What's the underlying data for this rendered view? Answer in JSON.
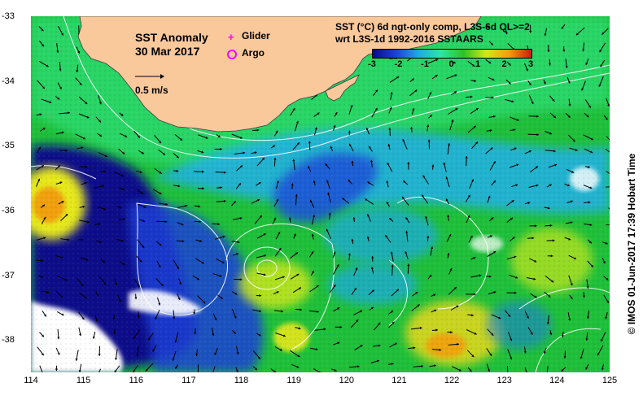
{
  "map": {
    "title": "SST Anomaly",
    "date": "30 Mar 2017",
    "scale_label": "0.5 m/s",
    "legend": {
      "glider": {
        "label": "Glider",
        "color": "#ff00ff",
        "symbol": "plus-marker"
      },
      "argo": {
        "label": "Argo",
        "color": "#ff00ff",
        "symbol": "circle-marker"
      }
    },
    "product_line1": "SST (°C) 6d ngt-only comp, L3S-6d QL>=2",
    "product_line2": "wrt L3S-1d 1992-2016 SSTAARS",
    "credit": "© IMOS 01-Jun-2017 17:39 Hobart Time",
    "colorbar": {
      "ticks": [
        "-3",
        "-2",
        "-1",
        "0",
        "1",
        "2",
        "3"
      ],
      "range": [
        -3,
        3
      ],
      "colors": [
        "#0a0a8c",
        "#1a3fd6",
        "#1fa8e6",
        "#2ee6a0",
        "#30c02a",
        "#d6e61a",
        "#f0a010",
        "#c81a10"
      ]
    },
    "x_ticks": [
      "114",
      "115",
      "116",
      "117",
      "118",
      "119",
      "120",
      "121",
      "122",
      "123",
      "124",
      "125"
    ],
    "y_ticks": [
      "-33",
      "-34",
      "-35",
      "-36",
      "-37",
      "-38"
    ],
    "lon_range": [
      114,
      125
    ],
    "lat_range": [
      -38.5,
      -33
    ],
    "land_color": "#f9c89b",
    "ocean_base_color": "#1fbf3a"
  }
}
